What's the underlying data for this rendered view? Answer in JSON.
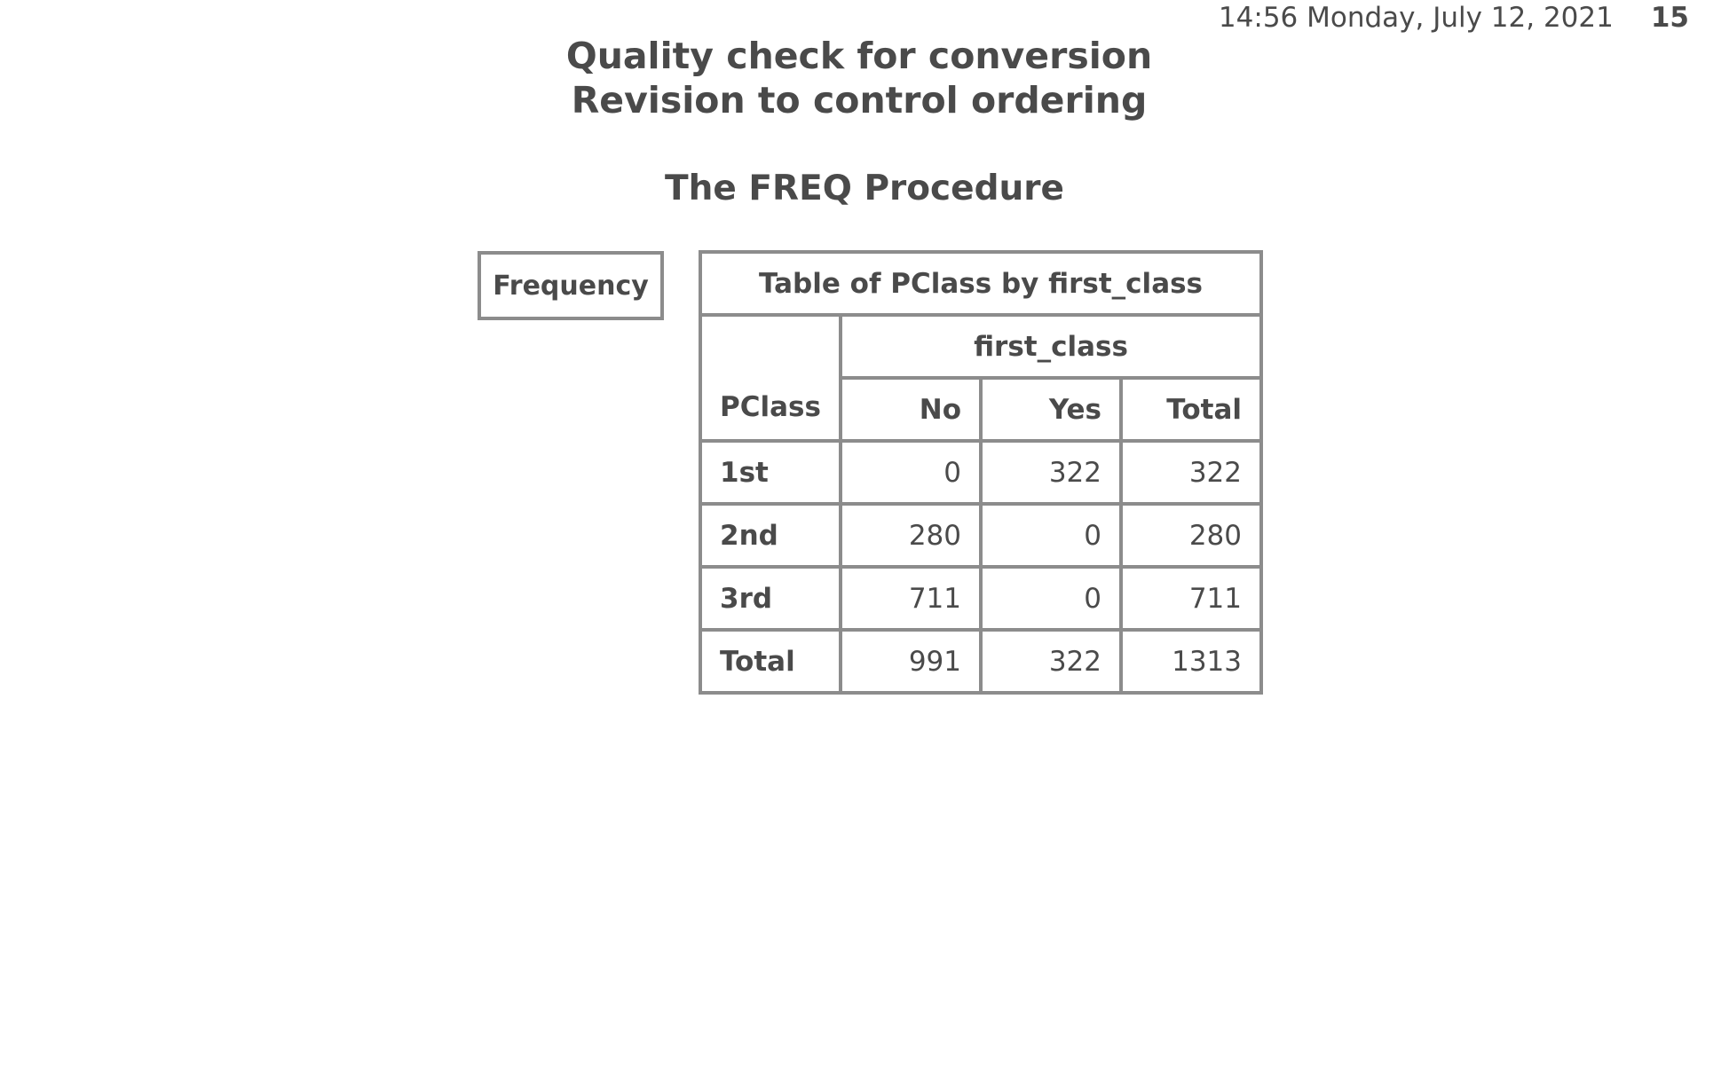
{
  "header": {
    "datetime": "14:56 Monday, July 12, 2021",
    "page_number": "15"
  },
  "titles": {
    "line1": "Quality check for conversion",
    "line2": "Revision to control ordering",
    "procedure": "The FREQ Procedure"
  },
  "legend": {
    "label": "Frequency"
  },
  "table": {
    "caption": "Table of PClass by first_class",
    "column_var": "first_class",
    "row_var": "PClass",
    "columns": [
      "No",
      "Yes",
      "Total"
    ],
    "rows": [
      {
        "label": "1st",
        "values": [
          "0",
          "322",
          "322"
        ]
      },
      {
        "label": "2nd",
        "values": [
          "280",
          "0",
          "280"
        ]
      },
      {
        "label": "3rd",
        "values": [
          "711",
          "0",
          "711"
        ]
      },
      {
        "label": "Total",
        "values": [
          "991",
          "322",
          "1313"
        ]
      }
    ]
  },
  "colors": {
    "text": "#4a4a4a",
    "border": "#8c8c8c"
  }
}
